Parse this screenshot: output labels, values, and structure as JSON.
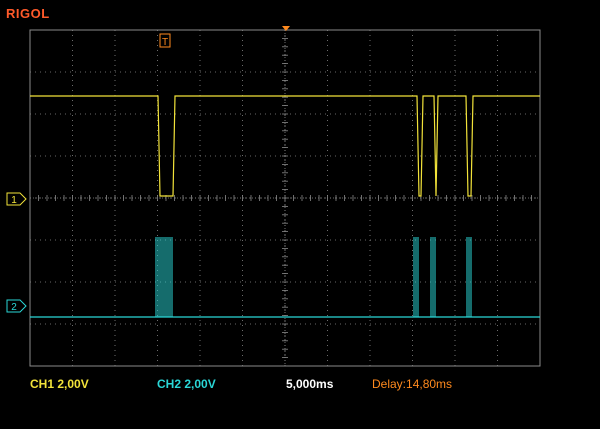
{
  "brand": "RIGOL",
  "colors": {
    "ch1": "#f2e33a",
    "ch2": "#2ad7d7",
    "trigger": "#ff8a1e",
    "grid": "#8a8a8a"
  },
  "screen": {
    "divisions_x": 12,
    "divisions_y": 8
  },
  "markers": {
    "trigger_label": "T",
    "ch1_label": "1",
    "ch2_label": "2"
  },
  "status": {
    "ch1": "CH1 2,00V",
    "ch2": "CH2 2,00V",
    "timebase": "5,000ms",
    "delay": "Delay:14,80ms"
  },
  "icons": [
    "trigger-marker-icon",
    "ch1-ground-marker-icon",
    "ch2-ground-marker-icon"
  ]
}
